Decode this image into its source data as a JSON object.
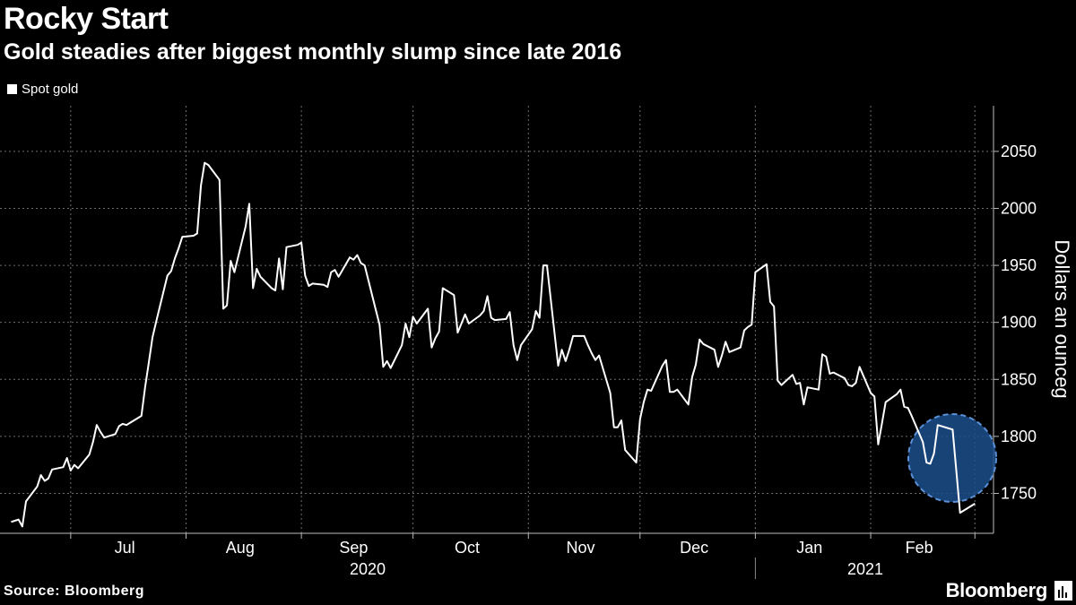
{
  "header": {
    "title": "Rocky Start",
    "subtitle": "Gold steadies after biggest monthly slump since late 2016"
  },
  "footer": {
    "source": "Source: Bloomberg",
    "brand": "Bloomberg"
  },
  "chart_data": {
    "type": "line",
    "title": "Rocky Start",
    "subtitle": "Gold steadies after biggest monthly slump since late 2016",
    "ylabel": "Dollars an ounceg",
    "xlabel": "",
    "ylim": [
      1715,
      2090
    ],
    "yticks": [
      1750,
      1800,
      1850,
      1900,
      1950,
      2000,
      2050
    ],
    "legend": {
      "position": "top-left",
      "entries": [
        "Spot gold"
      ]
    },
    "grid": true,
    "x_tick_labels": [
      "Jul",
      "Aug",
      "Sep",
      "Oct",
      "Nov",
      "Dec",
      "Jan",
      "Feb"
    ],
    "year_labels": [
      "2020",
      "2021"
    ],
    "highlight": {
      "shape": "circle",
      "color": "#1c4f8c",
      "note": "late Feb 2021"
    },
    "series": [
      {
        "name": "Spot gold",
        "color": "#ffffff",
        "x": [
          "2020-06-15",
          "2020-06-16",
          "2020-06-17",
          "2020-06-18",
          "2020-06-19",
          "2020-06-22",
          "2020-06-23",
          "2020-06-24",
          "2020-06-25",
          "2020-06-26",
          "2020-06-29",
          "2020-06-30",
          "2020-07-01",
          "2020-07-02",
          "2020-07-03",
          "2020-07-06",
          "2020-07-07",
          "2020-07-08",
          "2020-07-09",
          "2020-07-10",
          "2020-07-13",
          "2020-07-14",
          "2020-07-15",
          "2020-07-16",
          "2020-07-17",
          "2020-07-20",
          "2020-07-21",
          "2020-07-22",
          "2020-07-23",
          "2020-07-24",
          "2020-07-27",
          "2020-07-28",
          "2020-07-29",
          "2020-07-30",
          "2020-07-31",
          "2020-08-03",
          "2020-08-04",
          "2020-08-05",
          "2020-08-06",
          "2020-08-07",
          "2020-08-10",
          "2020-08-11",
          "2020-08-12",
          "2020-08-13",
          "2020-08-14",
          "2020-08-17",
          "2020-08-18",
          "2020-08-19",
          "2020-08-20",
          "2020-08-21",
          "2020-08-24",
          "2020-08-25",
          "2020-08-26",
          "2020-08-27",
          "2020-08-28",
          "2020-08-31",
          "2020-09-01",
          "2020-09-02",
          "2020-09-03",
          "2020-09-04",
          "2020-09-07",
          "2020-09-08",
          "2020-09-09",
          "2020-09-10",
          "2020-09-11",
          "2020-09-14",
          "2020-09-15",
          "2020-09-16",
          "2020-09-17",
          "2020-09-18",
          "2020-09-21",
          "2020-09-22",
          "2020-09-23",
          "2020-09-24",
          "2020-09-25",
          "2020-09-28",
          "2020-09-29",
          "2020-09-30",
          "2020-10-01",
          "2020-10-02",
          "2020-10-05",
          "2020-10-06",
          "2020-10-07",
          "2020-10-08",
          "2020-10-09",
          "2020-10-12",
          "2020-10-13",
          "2020-10-14",
          "2020-10-15",
          "2020-10-16",
          "2020-10-19",
          "2020-10-20",
          "2020-10-21",
          "2020-10-22",
          "2020-10-23",
          "2020-10-26",
          "2020-10-27",
          "2020-10-28",
          "2020-10-29",
          "2020-10-30",
          "2020-11-02",
          "2020-11-03",
          "2020-11-04",
          "2020-11-05",
          "2020-11-06",
          "2020-11-09",
          "2020-11-10",
          "2020-11-11",
          "2020-11-12",
          "2020-11-13",
          "2020-11-16",
          "2020-11-17",
          "2020-11-18",
          "2020-11-19",
          "2020-11-20",
          "2020-11-23",
          "2020-11-24",
          "2020-11-25",
          "2020-11-26",
          "2020-11-27",
          "2020-11-30",
          "2020-12-01",
          "2020-12-02",
          "2020-12-03",
          "2020-12-04",
          "2020-12-07",
          "2020-12-08",
          "2020-12-09",
          "2020-12-10",
          "2020-12-11",
          "2020-12-14",
          "2020-12-15",
          "2020-12-16",
          "2020-12-17",
          "2020-12-18",
          "2020-12-21",
          "2020-12-22",
          "2020-12-23",
          "2020-12-24",
          "2020-12-25",
          "2020-12-28",
          "2020-12-29",
          "2020-12-30",
          "2020-12-31",
          "2021-01-01",
          "2021-01-04",
          "2021-01-05",
          "2021-01-06",
          "2021-01-07",
          "2021-01-08",
          "2021-01-11",
          "2021-01-12",
          "2021-01-13",
          "2021-01-14",
          "2021-01-15",
          "2021-01-18",
          "2021-01-19",
          "2021-01-20",
          "2021-01-21",
          "2021-01-22",
          "2021-01-25",
          "2021-01-26",
          "2021-01-27",
          "2021-01-28",
          "2021-01-29",
          "2021-02-01",
          "2021-02-02",
          "2021-02-03",
          "2021-02-04",
          "2021-02-05",
          "2021-02-08",
          "2021-02-09",
          "2021-02-10",
          "2021-02-11",
          "2021-02-12",
          "2021-02-15",
          "2021-02-16",
          "2021-02-17",
          "2021-02-18",
          "2021-02-19",
          "2021-02-22",
          "2021-02-23",
          "2021-02-24",
          "2021-02-25",
          "2021-02-26",
          "2021-03-01"
        ],
        "y": [
          1725,
          1726,
          1727,
          1721,
          1743,
          1756,
          1766,
          1761,
          1763,
          1771,
          1773,
          1781,
          1770,
          1775,
          1772,
          1784,
          1795,
          1810,
          1804,
          1799,
          1802,
          1809,
          1811,
          1810,
          1812,
          1818,
          1843,
          1865,
          1887,
          1901,
          1941,
          1945,
          1956,
          1965,
          1975,
          1976,
          1978,
          2020,
          2040,
          2038,
          2025,
          1912,
          1915,
          1954,
          1944,
          1984,
          2004,
          1930,
          1947,
          1940,
          1930,
          1928,
          1956,
          1929,
          1966,
          1968,
          1970,
          1941,
          1932,
          1934,
          1933,
          1931,
          1944,
          1946,
          1940,
          1957,
          1955,
          1959,
          1952,
          1950,
          1911,
          1898,
          1861,
          1866,
          1860,
          1880,
          1899,
          1887,
          1905,
          1899,
          1912,
          1878,
          1886,
          1892,
          1930,
          1924,
          1891,
          1899,
          1907,
          1899,
          1906,
          1910,
          1923,
          1904,
          1902,
          1903,
          1909,
          1880,
          1867,
          1880,
          1894,
          1910,
          1904,
          1950,
          1950,
          1862,
          1876,
          1866,
          1876,
          1888,
          1888,
          1880,
          1873,
          1867,
          1871,
          1838,
          1808,
          1808,
          1814,
          1788,
          1777,
          1815,
          1830,
          1841,
          1840,
          1862,
          1867,
          1839,
          1839,
          1841,
          1828,
          1852,
          1863,
          1885,
          1881,
          1876,
          1861,
          1871,
          1883,
          1874,
          1878,
          1893,
          1896,
          1898,
          1944,
          1951,
          1918,
          1914,
          1849,
          1845,
          1854,
          1846,
          1847,
          1828,
          1843,
          1841,
          1872,
          1870,
          1855,
          1856,
          1851,
          1845,
          1844,
          1847,
          1861,
          1838,
          1835,
          1793,
          1811,
          1830,
          1837,
          1841,
          1826,
          1825,
          1818,
          1795,
          1777,
          1776,
          1785,
          1810,
          1807,
          1806,
          1770,
          1733,
          1735,
          1741
        ]
      }
    ]
  }
}
